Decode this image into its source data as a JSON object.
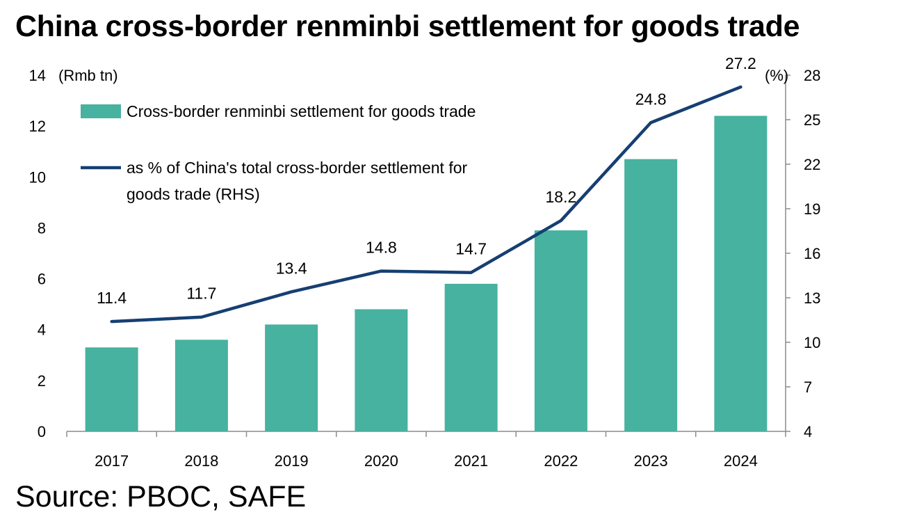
{
  "title": "China cross-border renminbi settlement for goods trade",
  "source": "Source: PBOC, SAFE",
  "chart_data": {
    "type": "bar",
    "categories": [
      "2017",
      "2018",
      "2019",
      "2020",
      "2021",
      "2022",
      "2023",
      "2024"
    ],
    "series": [
      {
        "name": "Cross-border renminbi settlement for goods trade",
        "type": "bar",
        "axis": "left",
        "color": "#47b29f",
        "values": [
          3.3,
          3.6,
          4.2,
          4.8,
          5.8,
          7.9,
          10.7,
          12.4
        ]
      },
      {
        "name": "as % of China's total cross-border settlement for goods trade (RHS)",
        "type": "line",
        "axis": "right",
        "color": "#163f72",
        "values": [
          11.4,
          11.7,
          13.4,
          14.8,
          14.7,
          18.2,
          24.8,
          27.2
        ],
        "data_labels": [
          "11.4",
          "11.7",
          "13.4",
          "14.8",
          "14.7",
          "18.2",
          "24.8",
          "27.2"
        ]
      }
    ],
    "y_left": {
      "unit_label": "(Rmb tn)",
      "ylim": [
        0,
        14
      ],
      "ticks": [
        0,
        2,
        4,
        6,
        8,
        10,
        12,
        14
      ]
    },
    "y_right": {
      "unit_label": "(%)",
      "ylim": [
        4,
        28
      ],
      "ticks": [
        4,
        7,
        10,
        13,
        16,
        19,
        22,
        25,
        28
      ]
    },
    "legend": {
      "placement": "top-left",
      "bar_lines": [
        "Cross-border renminbi settlement for goods trade"
      ],
      "line_lines": [
        "as % of China's total cross-border settlement for",
        "goods trade (RHS)"
      ]
    },
    "grid": false
  }
}
